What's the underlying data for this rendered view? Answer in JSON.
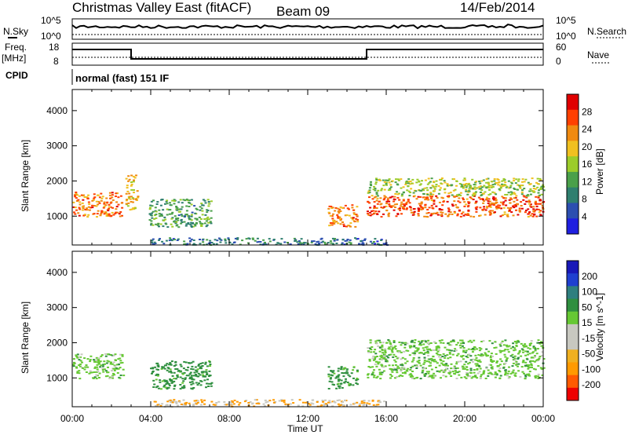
{
  "title": {
    "left": "Christmas Valley East (fitACF)",
    "beam": "Beam 09",
    "date": "14/Feb/2014"
  },
  "header": {
    "nsky_label": "N.Sky",
    "nsearch_label": "N.Search",
    "freq_label_1": "Freq.",
    "freq_label_2": "[MHz]",
    "nave_label": "Nave",
    "cpid_label": "CPID",
    "cpid_value": "normal (fast) 151 IF",
    "nsky_ticks": [
      "10^5",
      "10^0"
    ],
    "nsearch_ticks": [
      "10^5",
      "10^0"
    ],
    "freq_ticks": [
      "18",
      "8"
    ],
    "nave_ticks": [
      "60",
      "0"
    ]
  },
  "colors": {
    "power_scale": [
      "#1f1fe0",
      "#2c4fb0",
      "#2f7f6f",
      "#4aa04a",
      "#9ccc2a",
      "#f0c020",
      "#f08a10",
      "#ff4000",
      "#e00000"
    ],
    "velocity_scale": [
      "#ee0000",
      "#ff5a00",
      "#ff9a00",
      "#f0b020",
      "#c8c8c0",
      "#c8c8c0",
      "#66c833",
      "#2f8f3f",
      "#2f7f7f",
      "#1f3fd0",
      "#1818b8"
    ]
  },
  "chart_data": [
    {
      "type": "heatmap",
      "panel": "power",
      "xlabel": "",
      "ylabel": "Slant Range [km]",
      "x_range": [
        "00:00",
        "24:00"
      ],
      "ylim": [
        180,
        4600
      ],
      "yticks": [
        1000,
        2000,
        3000,
        4000
      ],
      "colorbar_label": "Power [dB]",
      "colorbar_ticks": [
        4,
        8,
        12,
        16,
        20,
        24,
        28
      ],
      "colorbar_range": [
        0,
        32
      ],
      "echo_regions": [
        {
          "t_start": 0.0,
          "t_end": 2.5,
          "range_min": 1000,
          "range_max": 1700,
          "power_db": 24
        },
        {
          "t_start": 2.7,
          "t_end": 3.3,
          "range_min": 1200,
          "range_max": 2200,
          "power_db": 20
        },
        {
          "t_start": 3.9,
          "t_end": 7.1,
          "range_min": 700,
          "range_max": 1500,
          "power_db": 12
        },
        {
          "t_start": 4.0,
          "t_end": 16.0,
          "range_min": 200,
          "range_max": 400,
          "power_db": 8
        },
        {
          "t_start": 13.0,
          "t_end": 14.5,
          "range_min": 700,
          "range_max": 1350,
          "power_db": 24
        },
        {
          "t_start": 15.0,
          "t_end": 24.0,
          "range_min": 1000,
          "range_max": 1600,
          "power_db": 26
        },
        {
          "t_start": 15.0,
          "t_end": 24.0,
          "range_min": 1600,
          "range_max": 2100,
          "power_db": 16
        }
      ]
    },
    {
      "type": "heatmap",
      "panel": "velocity",
      "xlabel": "Time UT",
      "ylabel": "Slant Range [km]",
      "x_range": [
        "00:00",
        "24:00"
      ],
      "xticks": [
        "00:00",
        "04:00",
        "08:00",
        "12:00",
        "16:00",
        "20:00",
        "00:00"
      ],
      "ylim": [
        180,
        4600
      ],
      "yticks": [
        1000,
        2000,
        3000,
        4000
      ],
      "colorbar_label": "Velocity [m s^-1]",
      "colorbar_ticks": [
        200,
        100,
        50,
        15,
        -15,
        -50,
        -100,
        -200
      ],
      "echo_regions": [
        {
          "t_start": 0.0,
          "t_end": 2.6,
          "range_min": 1000,
          "range_max": 1700,
          "velocity": 0
        },
        {
          "t_start": 3.9,
          "t_end": 7.1,
          "range_min": 700,
          "range_max": 1500,
          "velocity": 30
        },
        {
          "t_start": 4.0,
          "t_end": 16.0,
          "range_min": 200,
          "range_max": 400,
          "velocity": -50
        },
        {
          "t_start": 13.0,
          "t_end": 14.5,
          "range_min": 700,
          "range_max": 1350,
          "velocity": 30
        },
        {
          "t_start": 15.0,
          "t_end": 24.0,
          "range_min": 1000,
          "range_max": 1700,
          "velocity": 0
        },
        {
          "t_start": 15.0,
          "t_end": 24.0,
          "range_min": 1700,
          "range_max": 2100,
          "velocity": 0
        }
      ]
    }
  ],
  "freq_series": {
    "type": "step",
    "segments": [
      {
        "t_start": 0,
        "t_end": 3,
        "mhz": 16
      },
      {
        "t_start": 3,
        "t_end": 15,
        "mhz": 10
      },
      {
        "t_start": 15,
        "t_end": 24,
        "mhz": 16
      }
    ]
  }
}
